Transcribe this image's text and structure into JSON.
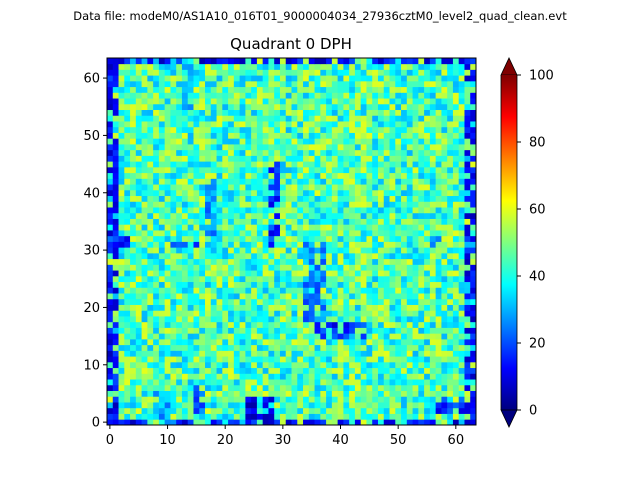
{
  "suptitle": "Data file: modeM0/AS1A10_016T01_9000004034_27936cztM0_level2_quad_clean.evt",
  "chart_data": {
    "type": "heatmap",
    "title": "Quadrant 0 DPH",
    "xlabel": "",
    "ylabel": "",
    "grid_size": [
      64,
      64
    ],
    "xlim": [
      0,
      64
    ],
    "ylim": [
      0,
      64
    ],
    "xticks": [
      0,
      10,
      20,
      30,
      40,
      50,
      60
    ],
    "yticks": [
      0,
      10,
      20,
      30,
      40,
      50,
      60
    ],
    "x_tick_labels": [
      "0",
      "10",
      "20",
      "30",
      "40",
      "50",
      "60"
    ],
    "y_tick_labels": [
      "0",
      "10",
      "20",
      "30",
      "40",
      "50",
      "60"
    ],
    "colormap": "jet",
    "colorbar": {
      "vmin": 0,
      "vmax": 100,
      "extend": "both",
      "ticks": [
        0,
        20,
        40,
        60,
        80,
        100
      ],
      "tick_labels": [
        "0",
        "20",
        "40",
        "60",
        "80",
        "100"
      ]
    },
    "typical_count": 45,
    "low_count_regions": [
      {
        "x": [
          0,
          2
        ],
        "y": [
          0,
          64
        ],
        "value": 5
      },
      {
        "x": [
          62,
          64
        ],
        "y": [
          0,
          64
        ],
        "value": 5
      },
      {
        "x": [
          0,
          64
        ],
        "y": [
          0,
          1
        ],
        "value": 5
      },
      {
        "x": [
          0,
          64
        ],
        "y": [
          63,
          64
        ],
        "value": 5
      },
      {
        "x": [
          24,
          29
        ],
        "y": [
          0,
          5
        ],
        "value": 2
      },
      {
        "x": [
          28,
          30
        ],
        "y": [
          30,
          46
        ],
        "value": 10
      },
      {
        "x": [
          34,
          38
        ],
        "y": [
          18,
          32
        ],
        "value": 18
      },
      {
        "x": [
          36,
          45
        ],
        "y": [
          15,
          18
        ],
        "value": 8
      },
      {
        "x": [
          17,
          19
        ],
        "y": [
          33,
          43
        ],
        "value": 20
      },
      {
        "x": [
          11,
          16
        ],
        "y": [
          31,
          32
        ],
        "value": 12
      },
      {
        "x": [
          0,
          4
        ],
        "y": [
          31,
          33
        ],
        "value": 10
      },
      {
        "x": [
          57,
          62
        ],
        "y": [
          2,
          5
        ],
        "value": 10
      },
      {
        "x": [
          8,
          12
        ],
        "y": [
          0,
          6
        ],
        "value": 22
      },
      {
        "x": [
          55,
          58
        ],
        "y": [
          31,
          33
        ],
        "value": 15
      },
      {
        "x": [
          13,
          15
        ],
        "y": [
          55,
          64
        ],
        "value": 25
      },
      {
        "x": [
          15,
          17
        ],
        "y": [
          2,
          7
        ],
        "value": 15
      }
    ]
  }
}
